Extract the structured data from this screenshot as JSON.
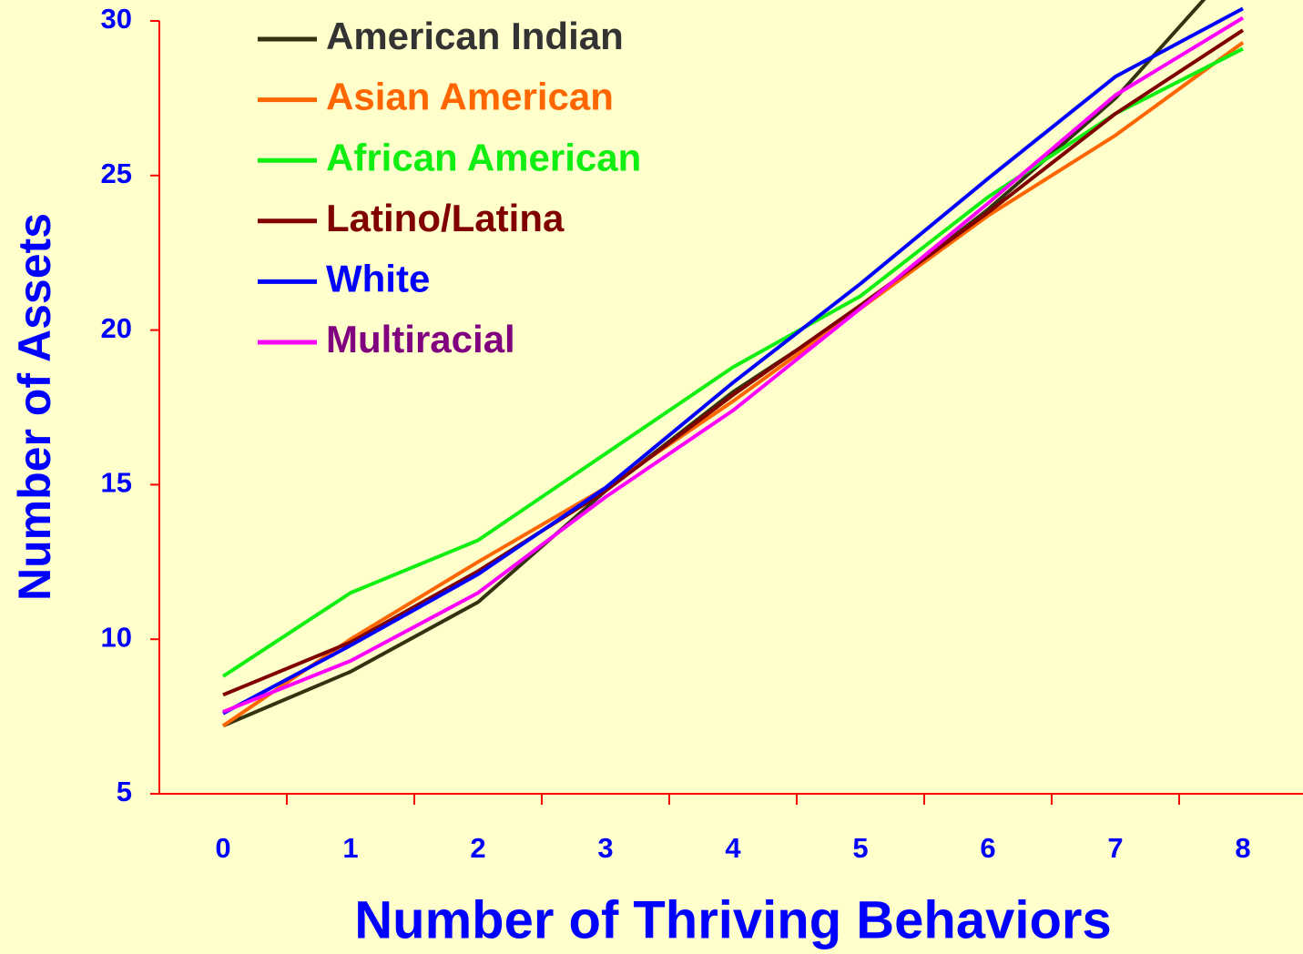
{
  "chart_data": {
    "type": "line",
    "x_label": "Number of Thriving Behaviors",
    "y_label": "Number of Assets",
    "categories": [
      "0",
      "1",
      "2",
      "3",
      "4",
      "5",
      "6",
      "7",
      "8"
    ],
    "series": [
      {
        "name": "American Indian",
        "color": "#333311",
        "text_color": "#333333",
        "values": [
          7.2,
          8.95,
          11.2,
          14.8,
          18.0,
          20.7,
          23.9,
          27.5,
          32.1
        ]
      },
      {
        "name": "Asian American",
        "color": "#ff6600",
        "text_color": "#ff6600",
        "values": [
          7.2,
          10.0,
          12.5,
          14.9,
          17.7,
          20.7,
          23.7,
          26.3,
          29.3
        ]
      },
      {
        "name": "African American",
        "color": "#11ee11",
        "text_color": "#11ee11",
        "values": [
          8.8,
          11.5,
          13.2,
          16.0,
          18.8,
          21.1,
          24.3,
          27.0,
          29.1
        ]
      },
      {
        "name": "Latino/Latina",
        "color": "#800000",
        "text_color": "#800000",
        "values": [
          8.2,
          9.9,
          12.2,
          14.8,
          17.9,
          20.8,
          23.8,
          27.0,
          29.7
        ]
      },
      {
        "name": "White",
        "color": "#0000ff",
        "text_color": "#0000ff",
        "values": [
          7.6,
          9.8,
          12.1,
          14.9,
          18.3,
          21.5,
          24.9,
          28.2,
          30.4
        ]
      },
      {
        "name": "Multiracial",
        "color": "#ff00ff",
        "text_color": "#800080",
        "values": [
          7.65,
          9.3,
          11.5,
          14.6,
          17.4,
          20.7,
          24.1,
          27.6,
          30.1
        ]
      }
    ],
    "ylim": [
      5,
      30
    ],
    "yticks": [
      5,
      10,
      15,
      20,
      25,
      30
    ],
    "axis_color": "#ff0000",
    "background": "#ffffcc",
    "legend": "upper left"
  }
}
